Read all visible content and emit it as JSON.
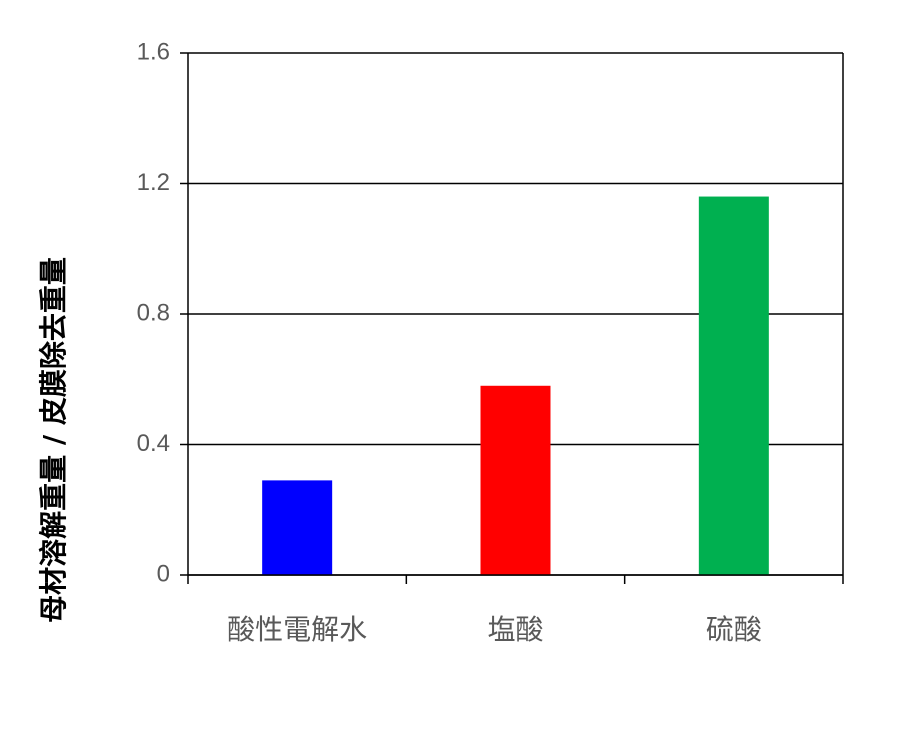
{
  "chart_data": {
    "type": "bar",
    "y_label": "母材溶解重量 / 皮膜除去重量",
    "categories": [
      "酸性電解水",
      "塩酸",
      "硫酸"
    ],
    "values": [
      0.29,
      0.58,
      1.16
    ],
    "colors": [
      "#0000ff",
      "#ff0000",
      "#00b050"
    ],
    "ylim": [
      0,
      1.6
    ],
    "yticks": [
      0,
      0.4,
      0.8,
      1.2,
      1.6
    ],
    "grid": true
  }
}
